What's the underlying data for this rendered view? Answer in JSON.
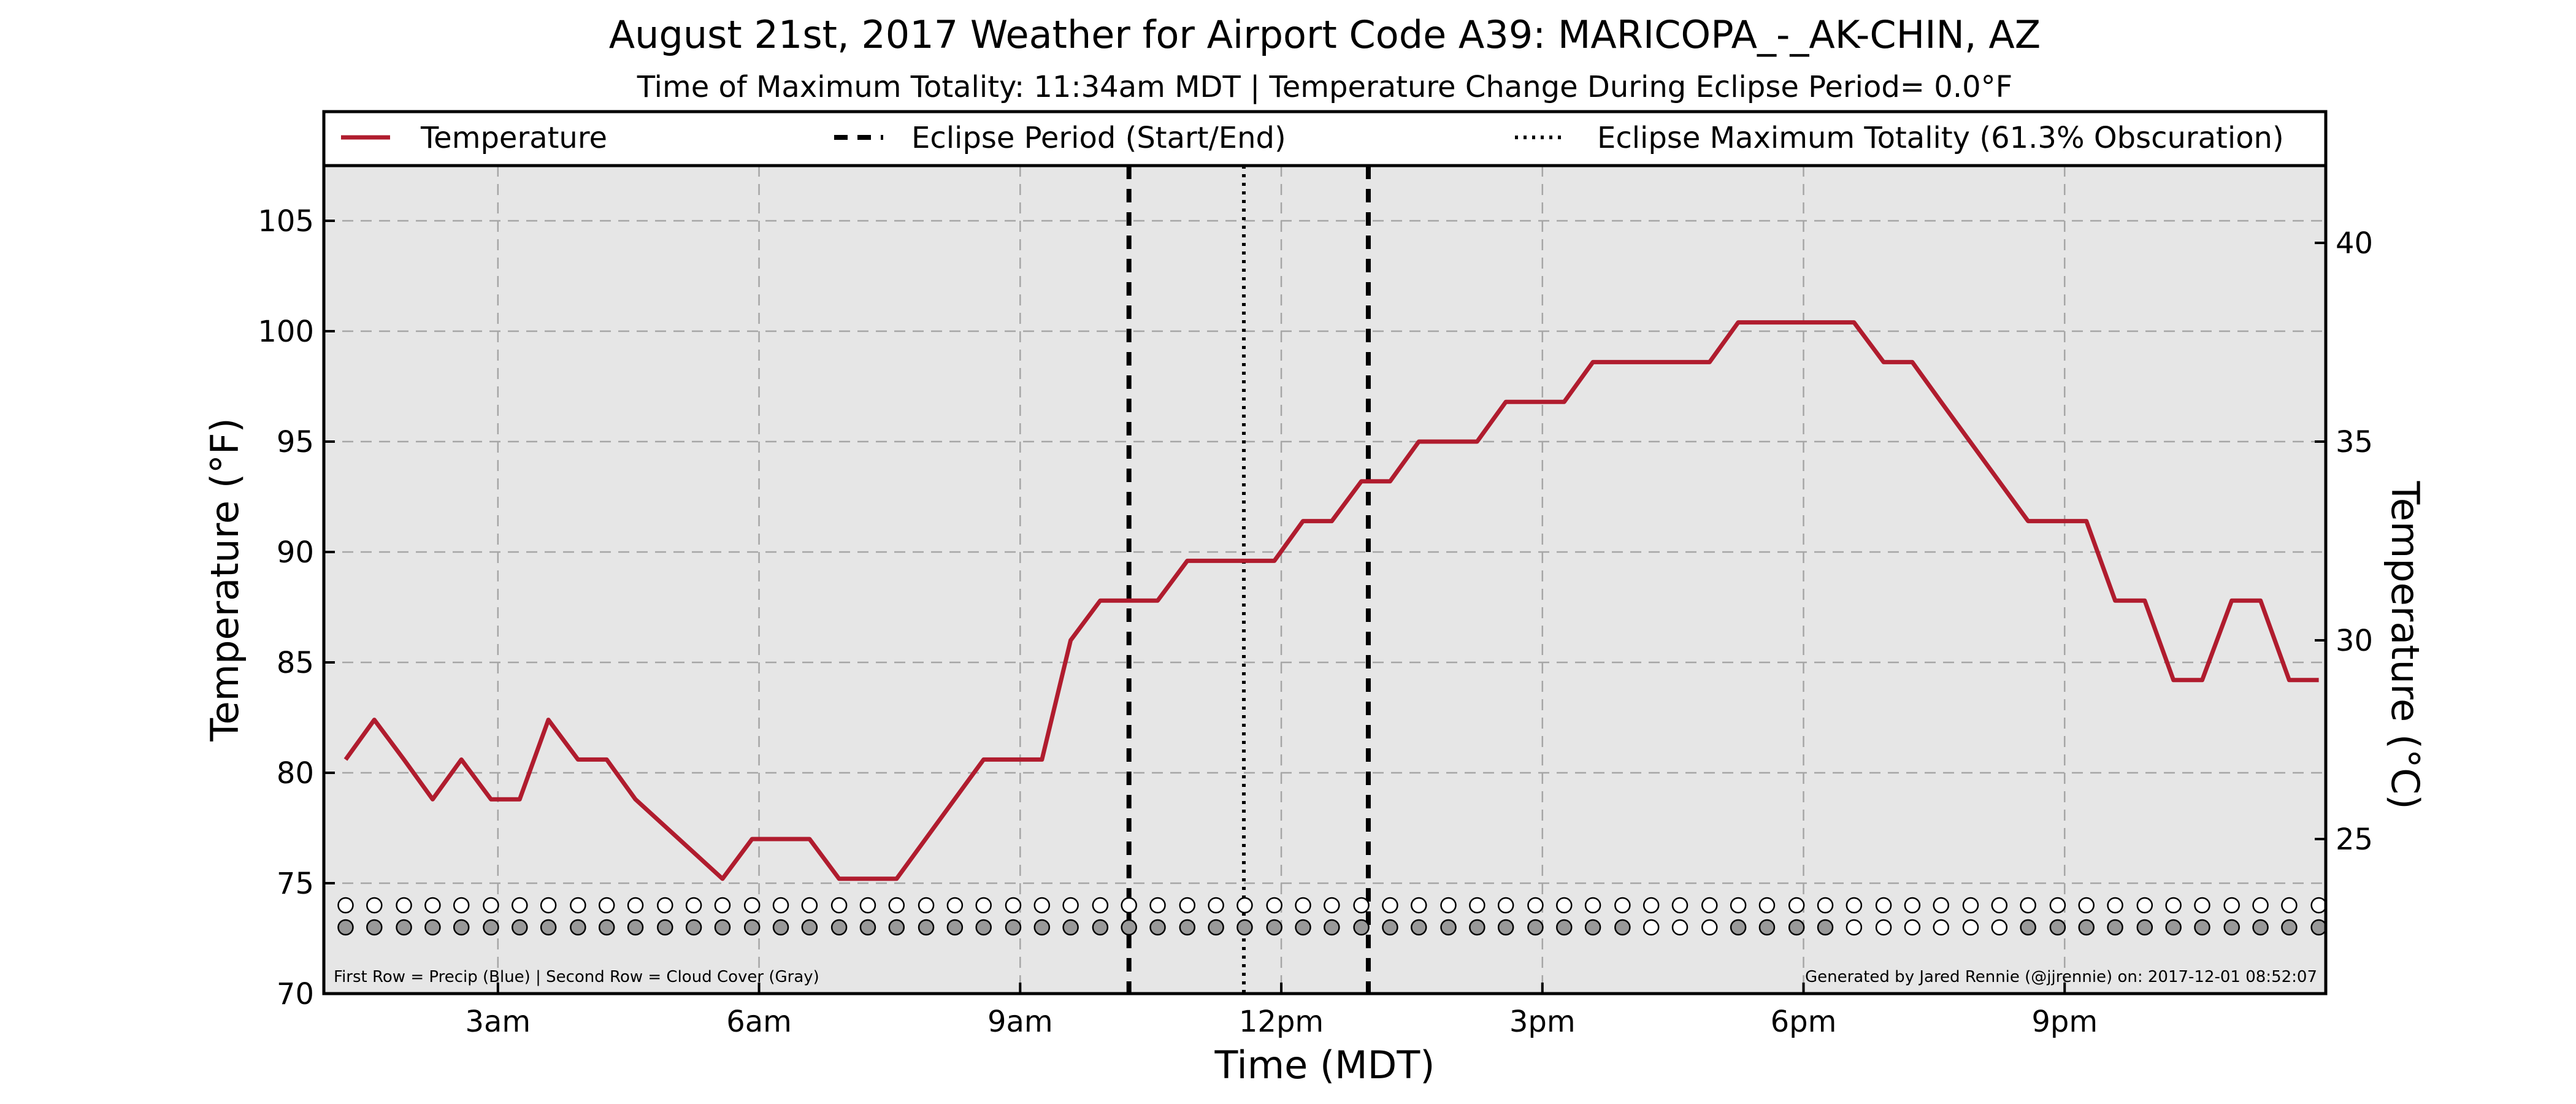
{
  "chart_data": {
    "type": "line",
    "title": "August 21st, 2017 Weather for Airport Code A39: MARICOPA_-_AK-CHIN, AZ",
    "subtitle": "Time of Maximum Totality: 11:34am MDT | Temperature Change During Eclipse Period= 0.0°F",
    "xlabel": "Time (MDT)",
    "ylabel": "Temperature (°F)",
    "ylabel_right": "Temperature (°C)",
    "xlim": [
      1.0,
      24.0
    ],
    "ylim": [
      70,
      107.5
    ],
    "x_ticks": [
      {
        "value": 3,
        "label": "3am"
      },
      {
        "value": 6,
        "label": "6am"
      },
      {
        "value": 9,
        "label": "9am"
      },
      {
        "value": 12,
        "label": "12pm"
      },
      {
        "value": 15,
        "label": "3pm"
      },
      {
        "value": 18,
        "label": "6pm"
      },
      {
        "value": 21,
        "label": "9pm"
      }
    ],
    "y_ticks": [
      70,
      75,
      80,
      85,
      90,
      95,
      100,
      105
    ],
    "y_ticks_right": [
      25,
      30,
      35,
      40
    ],
    "grid": true,
    "legend": {
      "placement": "top",
      "entries": [
        {
          "label": "Temperature",
          "style": "solid",
          "color": "#b01c2e"
        },
        {
          "label": "Eclipse Period (Start/End)",
          "style": "dashed",
          "color": "#000000"
        },
        {
          "label": "Eclipse Maximum Totality (61.3% Obscuration)",
          "style": "dotted",
          "color": "#000000"
        }
      ]
    },
    "series": [
      {
        "name": "Temperature",
        "color": "#b01c2e",
        "x": [
          1.25,
          1.58,
          1.92,
          2.25,
          2.58,
          2.92,
          3.25,
          3.58,
          3.92,
          4.25,
          4.58,
          5.58,
          5.92,
          6.25,
          6.58,
          6.92,
          7.25,
          7.58,
          8.58,
          8.92,
          9.25,
          9.58,
          9.92,
          10.25,
          10.58,
          10.92,
          11.25,
          11.58,
          11.92,
          12.25,
          12.58,
          12.92,
          13.25,
          13.58,
          13.92,
          14.25,
          14.58,
          14.92,
          15.25,
          15.58,
          15.92,
          16.25,
          16.58,
          16.92,
          17.25,
          17.58,
          17.92,
          18.25,
          18.58,
          18.92,
          19.25,
          19.58,
          20.58,
          20.92,
          21.25,
          21.58,
          21.92,
          22.25,
          22.58,
          22.92,
          23.25,
          23.58,
          23.92
        ],
        "values": [
          80.6,
          82.4,
          80.6,
          78.8,
          80.6,
          78.8,
          78.8,
          82.4,
          80.6,
          80.6,
          78.8,
          75.2,
          77.0,
          77.0,
          77.0,
          75.2,
          75.2,
          75.2,
          80.6,
          80.6,
          80.6,
          86.0,
          87.8,
          87.8,
          87.8,
          89.6,
          89.6,
          89.6,
          89.6,
          91.4,
          91.4,
          93.2,
          93.2,
          95.0,
          95.0,
          95.0,
          96.8,
          96.8,
          96.8,
          98.6,
          98.6,
          98.6,
          98.6,
          98.6,
          100.4,
          100.4,
          100.4,
          100.4,
          100.4,
          98.6,
          98.6,
          96.8,
          91.4,
          91.4,
          91.4,
          87.8,
          87.8,
          84.2,
          84.2,
          87.8,
          87.8,
          84.2,
          84.2
        ]
      }
    ],
    "eclipse": {
      "start": 10.25,
      "max": 11.57,
      "end": 13.0
    },
    "dot_rows": {
      "y_precip": 74,
      "y_cloud": 73,
      "x": [
        1.25,
        1.58,
        1.92,
        2.25,
        2.58,
        2.92,
        3.25,
        3.58,
        3.92,
        4.25,
        4.58,
        4.92,
        5.25,
        5.58,
        5.92,
        6.25,
        6.58,
        6.92,
        7.25,
        7.58,
        7.92,
        8.25,
        8.58,
        8.92,
        9.25,
        9.58,
        9.92,
        10.25,
        10.58,
        10.92,
        11.25,
        11.58,
        11.92,
        12.25,
        12.58,
        12.92,
        13.25,
        13.58,
        13.92,
        14.25,
        14.58,
        14.92,
        15.25,
        15.58,
        15.92,
        16.25,
        16.58,
        16.92,
        17.25,
        17.58,
        17.92,
        18.25,
        18.58,
        18.92,
        19.25,
        19.58,
        19.92,
        20.25,
        20.58,
        20.92,
        21.25,
        21.58,
        21.92,
        22.25,
        22.58,
        22.92,
        23.25,
        23.58,
        23.92
      ],
      "cloud_covered": [
        1,
        1,
        1,
        1,
        1,
        1,
        1,
        1,
        1,
        1,
        1,
        1,
        1,
        1,
        1,
        1,
        1,
        1,
        1,
        1,
        1,
        1,
        1,
        1,
        1,
        1,
        1,
        1,
        1,
        1,
        1,
        1,
        1,
        1,
        1,
        1,
        1,
        1,
        1,
        1,
        1,
        1,
        1,
        1,
        1,
        0,
        0,
        0,
        1,
        1,
        1,
        1,
        0,
        0,
        0,
        0,
        0,
        0,
        1,
        1,
        1,
        1,
        1,
        1,
        1,
        1,
        1,
        1,
        1
      ],
      "precip_color": "#ffffff",
      "cloud_color": "#999999",
      "clear_color": "#ffffff"
    },
    "footnote_left": "First Row = Precip (Blue) | Second Row = Cloud Cover (Gray)",
    "footnote_right": "Generated by Jared Rennie (@jjrennie) on: 2017-12-01 08:52:07",
    "colors": {
      "plot_background": "#e6e6e6",
      "temperature": "#b01c2e",
      "grid": "#a6a6a6"
    }
  }
}
